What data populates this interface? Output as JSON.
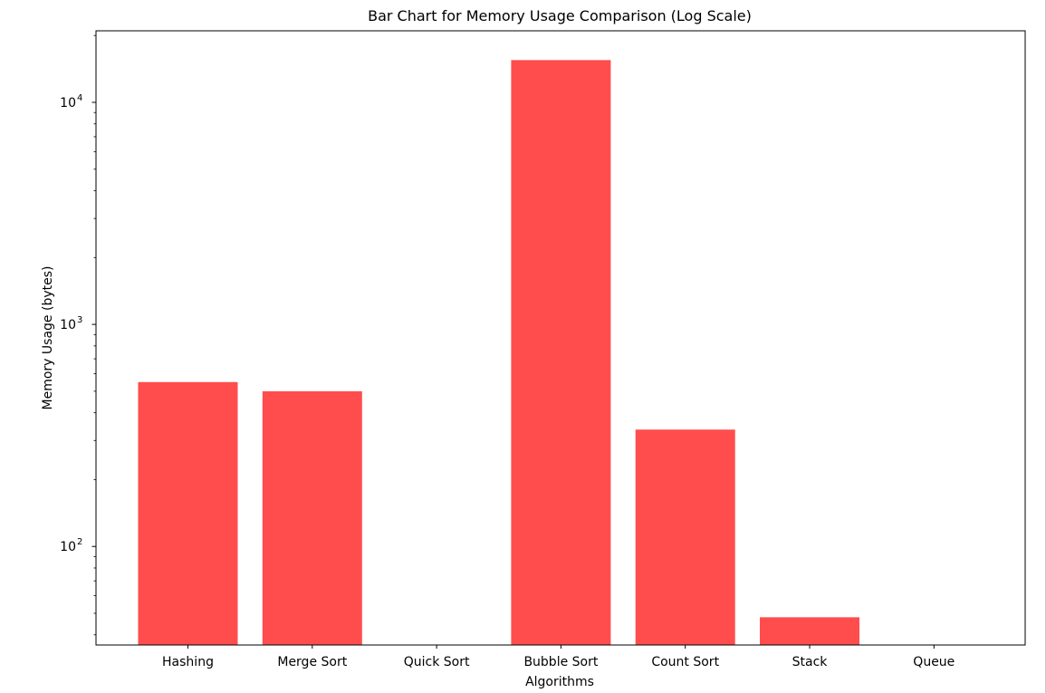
{
  "chart_data": {
    "type": "bar",
    "title": "Bar Chart for Memory Usage Comparison (Log Scale)",
    "xlabel": "Algorithms",
    "ylabel": "Memory Usage (bytes)",
    "categories": [
      "Hashing",
      "Merge Sort",
      "Quick Sort",
      "Bubble Sort",
      "Count Sort",
      "Stack",
      "Queue"
    ],
    "values": [
      550,
      500,
      0,
      15500,
      336,
      48,
      0
    ],
    "y_scale": "log",
    "ylim": [
      36,
      21000
    ],
    "y_ticks": [
      {
        "value": 100,
        "base": "10",
        "exp": "2"
      },
      {
        "value": 1000,
        "base": "10",
        "exp": "3"
      },
      {
        "value": 10000,
        "base": "10",
        "exp": "4"
      }
    ],
    "bar_color": "#ff4d4d",
    "grid": false,
    "legend": "none"
  }
}
